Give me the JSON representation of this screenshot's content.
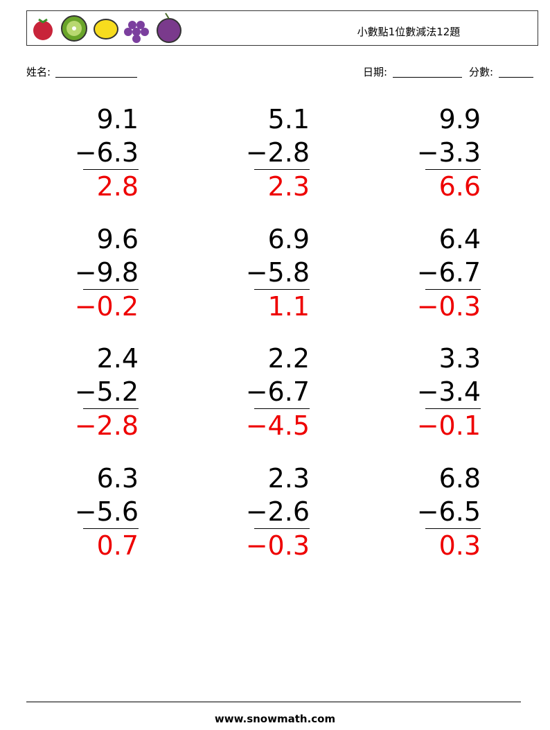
{
  "header": {
    "title": "小數點1位數減法12題"
  },
  "fields": {
    "name": "姓名:",
    "date": "日期:",
    "score": "分數:"
  },
  "problems": [
    {
      "top": "9.1",
      "bottom": "−6.3",
      "answer": "2.8"
    },
    {
      "top": "5.1",
      "bottom": "−2.8",
      "answer": "2.3"
    },
    {
      "top": "9.9",
      "bottom": "−3.3",
      "answer": "6.6"
    },
    {
      "top": "9.6",
      "bottom": "−9.8",
      "answer": "−0.2"
    },
    {
      "top": "6.9",
      "bottom": "−5.8",
      "answer": "1.1"
    },
    {
      "top": "6.4",
      "bottom": "−6.7",
      "answer": "−0.3"
    },
    {
      "top": "2.4",
      "bottom": "−5.2",
      "answer": "−2.8"
    },
    {
      "top": "2.2",
      "bottom": "−6.7",
      "answer": "−4.5"
    },
    {
      "top": "3.3",
      "bottom": "−3.4",
      "answer": "−0.1"
    },
    {
      "top": "6.3",
      "bottom": "−5.6",
      "answer": "0.7"
    },
    {
      "top": "2.3",
      "bottom": "−2.6",
      "answer": "−0.3"
    },
    {
      "top": "6.8",
      "bottom": "−6.5",
      "answer": "0.3"
    }
  ],
  "footer": {
    "url": "www.snowmath.com"
  }
}
